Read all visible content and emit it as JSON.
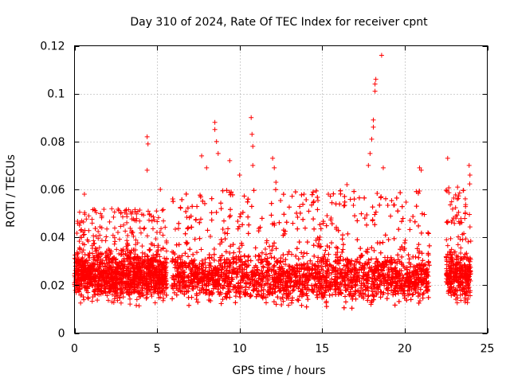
{
  "chart_data": {
    "type": "scatter",
    "title": "Day 310 of 2024, Rate Of TEC Index for receiver cpnt",
    "xlabel": "GPS time / hours",
    "ylabel": "ROTI / TECUs",
    "xlim": [
      0,
      25
    ],
    "ylim": [
      0,
      0.12
    ],
    "xticks": [
      0,
      5,
      10,
      15,
      20,
      25
    ],
    "xtick_labels": [
      "0",
      "5",
      "10",
      "15",
      "20",
      "25"
    ],
    "yticks": [
      0,
      0.02,
      0.04,
      0.06,
      0.08,
      0.1,
      0.12
    ],
    "ytick_labels": [
      "0",
      "0.02",
      "0.04",
      "0.06",
      "0.08",
      "0.1",
      "0.12"
    ],
    "grid": true,
    "marker": "+",
    "color": "#ff0000",
    "data_segments": [
      {
        "x_start": 0.0,
        "x_end": 5.6,
        "y_min": 0.006,
        "y_max": 0.052
      },
      {
        "x_start": 5.9,
        "x_end": 21.5,
        "y_min": 0.005,
        "y_max": 0.06
      },
      {
        "x_start": 22.5,
        "x_end": 24.0,
        "y_min": 0.006,
        "y_max": 0.064
      }
    ],
    "outliers": [
      {
        "x": 0.6,
        "y": 0.058
      },
      {
        "x": 4.4,
        "y": 0.082
      },
      {
        "x": 4.45,
        "y": 0.079
      },
      {
        "x": 4.4,
        "y": 0.068
      },
      {
        "x": 5.2,
        "y": 0.06
      },
      {
        "x": 7.7,
        "y": 0.074
      },
      {
        "x": 8.0,
        "y": 0.069
      },
      {
        "x": 8.5,
        "y": 0.085
      },
      {
        "x": 8.5,
        "y": 0.088
      },
      {
        "x": 8.6,
        "y": 0.08
      },
      {
        "x": 8.7,
        "y": 0.075
      },
      {
        "x": 9.4,
        "y": 0.072
      },
      {
        "x": 10.0,
        "y": 0.066
      },
      {
        "x": 10.7,
        "y": 0.09
      },
      {
        "x": 10.75,
        "y": 0.083
      },
      {
        "x": 10.8,
        "y": 0.078
      },
      {
        "x": 10.8,
        "y": 0.07
      },
      {
        "x": 12.0,
        "y": 0.073
      },
      {
        "x": 12.1,
        "y": 0.069
      },
      {
        "x": 12.2,
        "y": 0.063
      },
      {
        "x": 13.9,
        "y": 0.058
      },
      {
        "x": 16.5,
        "y": 0.062
      },
      {
        "x": 17.8,
        "y": 0.07
      },
      {
        "x": 17.9,
        "y": 0.075
      },
      {
        "x": 18.0,
        "y": 0.081
      },
      {
        "x": 18.1,
        "y": 0.086
      },
      {
        "x": 18.1,
        "y": 0.089
      },
      {
        "x": 18.2,
        "y": 0.101
      },
      {
        "x": 18.2,
        "y": 0.104
      },
      {
        "x": 18.25,
        "y": 0.106
      },
      {
        "x": 18.6,
        "y": 0.116
      },
      {
        "x": 18.7,
        "y": 0.069
      },
      {
        "x": 20.9,
        "y": 0.069
      },
      {
        "x": 21.0,
        "y": 0.068
      },
      {
        "x": 22.6,
        "y": 0.073
      },
      {
        "x": 23.9,
        "y": 0.07
      },
      {
        "x": 23.95,
        "y": 0.066
      }
    ]
  }
}
